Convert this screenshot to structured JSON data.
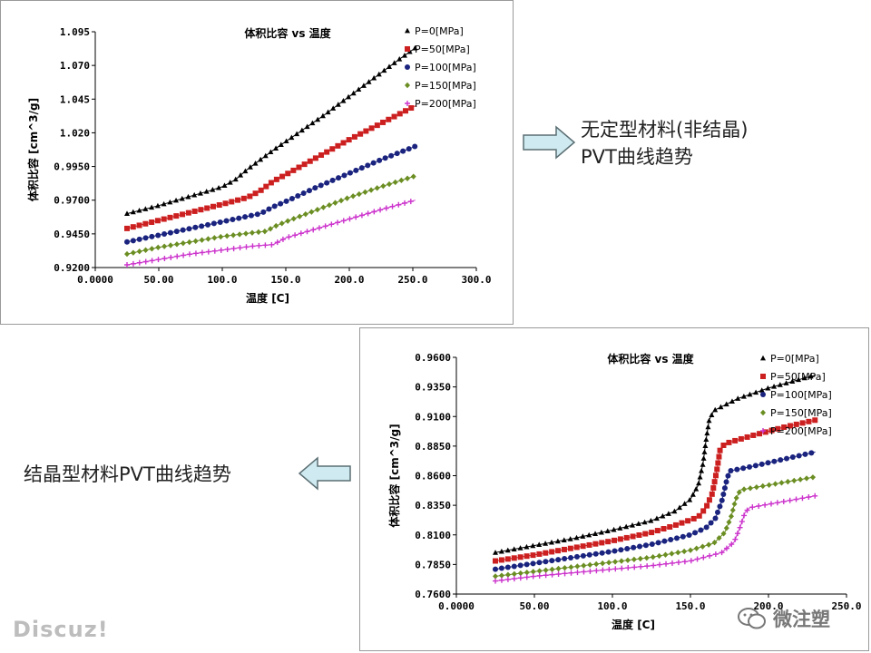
{
  "chart_data": [
    {
      "type": "line",
      "title": "体积比容 vs 温度",
      "xlabel": "温度 [C]",
      "ylabel": "体积比容 [cm^3/g]",
      "xlim": [
        0,
        300
      ],
      "ylim": [
        0.92,
        1.095
      ],
      "xticks": [
        "0.0000",
        "50.00",
        "100.0",
        "150.0",
        "200.0",
        "250.0",
        "300.0"
      ],
      "yticks": [
        "0.9200",
        "0.9450",
        "0.9700",
        "0.9950",
        "1.020",
        "1.045",
        "1.070",
        "1.095"
      ],
      "legend_position": "top-right",
      "grid": false,
      "series": [
        {
          "name": "P=0[MPa]",
          "color": "#000000",
          "marker": "triangle",
          "x": [
            25,
            50,
            75,
            90,
            100,
            110,
            120,
            140,
            160,
            180,
            200,
            220,
            240,
            252
          ],
          "y": [
            0.96,
            0.966,
            0.973,
            0.977,
            0.98,
            0.985,
            0.993,
            1.007,
            1.02,
            1.033,
            1.047,
            1.061,
            1.075,
            1.083
          ]
        },
        {
          "name": "P=50[MPa]",
          "color": "#cc2020",
          "marker": "square",
          "x": [
            25,
            50,
            75,
            100,
            120,
            130,
            140,
            150,
            175,
            200,
            225,
            252
          ],
          "y": [
            0.949,
            0.955,
            0.961,
            0.967,
            0.972,
            0.977,
            0.984,
            0.989,
            1.002,
            1.015,
            1.027,
            1.04
          ]
        },
        {
          "name": "P=100[MPa]",
          "color": "#1a237e",
          "marker": "circle",
          "x": [
            25,
            50,
            75,
            100,
            120,
            130,
            140,
            150,
            175,
            200,
            225,
            252
          ],
          "y": [
            0.939,
            0.944,
            0.949,
            0.954,
            0.958,
            0.96,
            0.965,
            0.969,
            0.98,
            0.99,
            1.0,
            1.01
          ]
        },
        {
          "name": "P=150[MPa]",
          "color": "#6b8e23",
          "marker": "diamond",
          "x": [
            25,
            50,
            75,
            100,
            125,
            135,
            140,
            150,
            175,
            200,
            225,
            252
          ],
          "y": [
            0.93,
            0.935,
            0.939,
            0.943,
            0.946,
            0.947,
            0.95,
            0.954,
            0.963,
            0.972,
            0.98,
            0.988
          ]
        },
        {
          "name": "P=200[MPa]",
          "color": "#cc33cc",
          "marker": "plus",
          "x": [
            25,
            50,
            75,
            100,
            125,
            140,
            150,
            175,
            200,
            225,
            252
          ],
          "y": [
            0.922,
            0.926,
            0.93,
            0.933,
            0.936,
            0.937,
            0.942,
            0.949,
            0.956,
            0.963,
            0.97
          ]
        }
      ]
    },
    {
      "type": "line",
      "title": "体积比容 vs 温度",
      "xlabel": "温度 [C]",
      "ylabel": "体积比容 [cm^3/g]",
      "xlim": [
        0,
        250
      ],
      "ylim": [
        0.76,
        0.96
      ],
      "xticks": [
        "0.0000",
        "50.00",
        "100.0",
        "150.0",
        "200.0",
        "250.0"
      ],
      "yticks": [
        "0.7600",
        "0.7850",
        "0.8100",
        "0.8350",
        "0.8600",
        "0.8850",
        "0.9100",
        "0.9350",
        "0.9600"
      ],
      "legend_position": "top-right",
      "grid": false,
      "series": [
        {
          "name": "P=0[MPa]",
          "color": "#000000",
          "marker": "triangle",
          "x": [
            25,
            50,
            75,
            100,
            125,
            140,
            150,
            155,
            158,
            160,
            162,
            165,
            180,
            200,
            230
          ],
          "y": [
            0.795,
            0.801,
            0.807,
            0.814,
            0.822,
            0.83,
            0.84,
            0.852,
            0.87,
            0.89,
            0.907,
            0.915,
            0.925,
            0.934,
            0.945
          ]
        },
        {
          "name": "P=50[MPa]",
          "color": "#cc2020",
          "marker": "square",
          "x": [
            25,
            50,
            75,
            100,
            125,
            140,
            155,
            160,
            164,
            167,
            169,
            172,
            190,
            210,
            230
          ],
          "y": [
            0.788,
            0.793,
            0.799,
            0.805,
            0.812,
            0.818,
            0.825,
            0.833,
            0.845,
            0.865,
            0.882,
            0.887,
            0.894,
            0.901,
            0.907
          ]
        },
        {
          "name": "P=100[MPa]",
          "color": "#1a237e",
          "marker": "circle",
          "x": [
            25,
            50,
            75,
            100,
            125,
            150,
            160,
            166,
            170,
            173,
            175,
            190,
            210,
            230
          ],
          "y": [
            0.781,
            0.786,
            0.791,
            0.796,
            0.802,
            0.81,
            0.816,
            0.824,
            0.838,
            0.855,
            0.864,
            0.868,
            0.874,
            0.88
          ]
        },
        {
          "name": "P=150[MPa]",
          "color": "#6b8e23",
          "marker": "diamond",
          "x": [
            25,
            50,
            75,
            100,
            125,
            150,
            165,
            172,
            176,
            179,
            182,
            200,
            230
          ],
          "y": [
            0.775,
            0.779,
            0.783,
            0.787,
            0.791,
            0.797,
            0.803,
            0.812,
            0.825,
            0.84,
            0.848,
            0.852,
            0.859
          ]
        },
        {
          "name": "P=200[MPa]",
          "color": "#cc33cc",
          "marker": "plus",
          "x": [
            25,
            50,
            75,
            100,
            125,
            150,
            170,
            178,
            182,
            185,
            188,
            205,
            230
          ],
          "y": [
            0.771,
            0.775,
            0.778,
            0.781,
            0.784,
            0.788,
            0.795,
            0.804,
            0.817,
            0.829,
            0.833,
            0.837,
            0.843
          ]
        }
      ]
    }
  ],
  "labels": {
    "amorphous": [
      "无定型材料(非结晶)",
      "PVT曲线趋势"
    ],
    "crystalline": "结晶型材料PVT曲线趋势"
  },
  "colors": {
    "arrow_fill": "#cfeaf0",
    "arrow_stroke": "#5a6e73"
  },
  "watermarks": {
    "left": "Discuz!",
    "right": "微注塑",
    "right_icon": "wechat-icon"
  }
}
